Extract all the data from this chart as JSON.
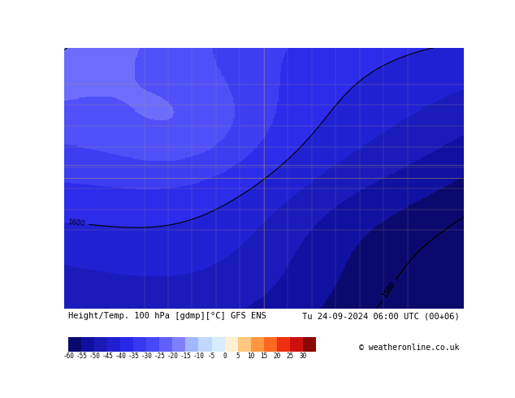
{
  "title_left": "Height/Temp. 100 hPa [gdmp][°C] GFS ENS",
  "title_right": "Tu 24-09-2024 06:00 UTC (00+06)",
  "copyright": "© weatheronline.co.uk",
  "colorbar_levels": [
    -60,
    -55,
    -50,
    -45,
    -40,
    -35,
    -30,
    -25,
    -20,
    -15,
    -10,
    -5,
    0,
    5,
    10,
    15,
    20,
    25,
    30
  ],
  "colorbar_colors": [
    "#0a0a6e",
    "#1010a0",
    "#1a1ab8",
    "#2020d0",
    "#2828e8",
    "#3838f0",
    "#4848f8",
    "#6060fa",
    "#8080fc",
    "#a0b8fe",
    "#c0d8fe",
    "#d8ecfe",
    "#fef0d0",
    "#fec880",
    "#fe9840",
    "#fe6820",
    "#ee3010",
    "#cc1010",
    "#8a0808"
  ],
  "map_bg_color": "#1a1aee",
  "label_bg_color": "#ffffff",
  "fig_width": 6.34,
  "fig_height": 4.9,
  "dpi": 100
}
